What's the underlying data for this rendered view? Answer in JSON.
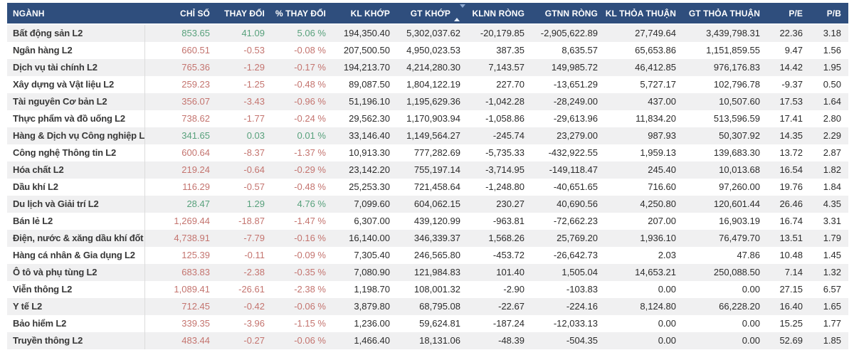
{
  "colors": {
    "header_bg": "#2f4e7d",
    "positive": "#58a17c",
    "negative": "#c4746f"
  },
  "table": {
    "columns": [
      {
        "key": "nganh",
        "label": "NGÀNH",
        "align": "left"
      },
      {
        "key": "chi_so",
        "label": "CHỈ SỐ"
      },
      {
        "key": "thay_doi",
        "label": "THAY ĐỔI"
      },
      {
        "key": "pct_thay_doi",
        "label": "% THAY ĐỔI"
      },
      {
        "key": "kl_khop",
        "label": "KL KHỚP"
      },
      {
        "key": "gt_khop",
        "label": "GT KHỚP",
        "sort_icon": true
      },
      {
        "key": "klnn_rong",
        "label": "KLNN RÒNG"
      },
      {
        "key": "gtnn_rong",
        "label": "GTNN RÒNG"
      },
      {
        "key": "kl_thoa_thuan",
        "label": "KL THỎA THUẬN"
      },
      {
        "key": "gt_thoa_thuan",
        "label": "GT THỎA THUẬN"
      },
      {
        "key": "pe",
        "label": "P/E"
      },
      {
        "key": "pb",
        "label": "P/B"
      }
    ],
    "rows": [
      {
        "nganh": "Bất động sản L2",
        "trend": "up",
        "chi_so": "853.65",
        "thay_doi": "41.09",
        "pct_thay_doi": "5.06 %",
        "kl_khop": "194,350.40",
        "gt_khop": "5,302,037.62",
        "klnn_rong": "-20,179.85",
        "gtnn_rong": "-2,905,622.89",
        "kl_thoa_thuan": "27,749.64",
        "gt_thoa_thuan": "3,439,798.31",
        "pe": "22.36",
        "pb": "3.18"
      },
      {
        "nganh": "Ngân hàng L2",
        "trend": "down",
        "chi_so": "660.51",
        "thay_doi": "-0.53",
        "pct_thay_doi": "-0.08 %",
        "kl_khop": "207,500.50",
        "gt_khop": "4,950,023.53",
        "klnn_rong": "387.35",
        "gtnn_rong": "8,635.57",
        "kl_thoa_thuan": "65,653.86",
        "gt_thoa_thuan": "1,151,859.55",
        "pe": "9.47",
        "pb": "1.56"
      },
      {
        "nganh": "Dịch vụ tài chính L2",
        "trend": "down",
        "chi_so": "765.36",
        "thay_doi": "-1.29",
        "pct_thay_doi": "-0.17 %",
        "kl_khop": "194,213.70",
        "gt_khop": "4,214,280.30",
        "klnn_rong": "7,143.57",
        "gtnn_rong": "149,985.72",
        "kl_thoa_thuan": "46,412.85",
        "gt_thoa_thuan": "976,176.83",
        "pe": "14.42",
        "pb": "1.95"
      },
      {
        "nganh": "Xây dựng và Vật liệu L2",
        "trend": "down",
        "chi_so": "259.23",
        "thay_doi": "-1.25",
        "pct_thay_doi": "-0.48 %",
        "kl_khop": "89,087.50",
        "gt_khop": "1,804,122.19",
        "klnn_rong": "227.70",
        "gtnn_rong": "-13,651.29",
        "kl_thoa_thuan": "5,727.17",
        "gt_thoa_thuan": "102,796.78",
        "pe": "-9.37",
        "pb": "0.50"
      },
      {
        "nganh": "Tài nguyên Cơ bản L2",
        "trend": "down",
        "chi_so": "356.07",
        "thay_doi": "-3.43",
        "pct_thay_doi": "-0.96 %",
        "kl_khop": "51,196.10",
        "gt_khop": "1,195,629.36",
        "klnn_rong": "-1,042.28",
        "gtnn_rong": "-28,249.00",
        "kl_thoa_thuan": "437.00",
        "gt_thoa_thuan": "10,507.60",
        "pe": "17.53",
        "pb": "1.64"
      },
      {
        "nganh": "Thực phẩm và đồ uống L2",
        "trend": "down",
        "chi_so": "738.62",
        "thay_doi": "-1.77",
        "pct_thay_doi": "-0.24 %",
        "kl_khop": "29,562.30",
        "gt_khop": "1,170,903.94",
        "klnn_rong": "-1,058.86",
        "gtnn_rong": "-29,613.96",
        "kl_thoa_thuan": "11,834.20",
        "gt_thoa_thuan": "513,596.59",
        "pe": "17.41",
        "pb": "2.80"
      },
      {
        "nganh": "Hàng & Dịch vụ Công nghiệp L2",
        "trend": "up",
        "chi_so": "341.65",
        "thay_doi": "0.03",
        "pct_thay_doi": "0.01 %",
        "kl_khop": "33,146.40",
        "gt_khop": "1,149,564.27",
        "klnn_rong": "-245.74",
        "gtnn_rong": "23,279.00",
        "kl_thoa_thuan": "987.93",
        "gt_thoa_thuan": "50,307.92",
        "pe": "14.35",
        "pb": "2.29"
      },
      {
        "nganh": "Công nghệ Thông tin L2",
        "trend": "down",
        "chi_so": "600.64",
        "thay_doi": "-8.37",
        "pct_thay_doi": "-1.37 %",
        "kl_khop": "10,913.30",
        "gt_khop": "777,282.69",
        "klnn_rong": "-5,735.33",
        "gtnn_rong": "-432,922.55",
        "kl_thoa_thuan": "1,959.13",
        "gt_thoa_thuan": "139,683.30",
        "pe": "13.72",
        "pb": "2.87"
      },
      {
        "nganh": "Hóa chất L2",
        "trend": "down",
        "chi_so": "219.24",
        "thay_doi": "-0.64",
        "pct_thay_doi": "-0.29 %",
        "kl_khop": "23,142.20",
        "gt_khop": "755,197.14",
        "klnn_rong": "-3,714.95",
        "gtnn_rong": "-149,118.47",
        "kl_thoa_thuan": "245.40",
        "gt_thoa_thuan": "10,013.68",
        "pe": "16.54",
        "pb": "1.82"
      },
      {
        "nganh": "Dầu khí L2",
        "trend": "down",
        "chi_so": "116.29",
        "thay_doi": "-0.57",
        "pct_thay_doi": "-0.48 %",
        "kl_khop": "25,253.30",
        "gt_khop": "721,458.64",
        "klnn_rong": "-1,248.80",
        "gtnn_rong": "-40,651.65",
        "kl_thoa_thuan": "716.60",
        "gt_thoa_thuan": "97,260.00",
        "pe": "19.76",
        "pb": "1.84"
      },
      {
        "nganh": "Du lịch và Giải trí L2",
        "trend": "up",
        "chi_so": "28.47",
        "thay_doi": "1.29",
        "pct_thay_doi": "4.76 %",
        "kl_khop": "7,099.60",
        "gt_khop": "604,062.15",
        "klnn_rong": "230.27",
        "gtnn_rong": "40,690.56",
        "kl_thoa_thuan": "4,250.80",
        "gt_thoa_thuan": "120,601.44",
        "pe": "26.46",
        "pb": "4.35"
      },
      {
        "nganh": "Bán lẻ L2",
        "trend": "down",
        "chi_so": "1,269.44",
        "thay_doi": "-18.87",
        "pct_thay_doi": "-1.47 %",
        "kl_khop": "6,307.00",
        "gt_khop": "439,120.99",
        "klnn_rong": "-963.81",
        "gtnn_rong": "-72,662.23",
        "kl_thoa_thuan": "207.00",
        "gt_thoa_thuan": "16,903.19",
        "pe": "16.74",
        "pb": "3.31"
      },
      {
        "nganh": "Điện, nước & xăng dầu khí đốt L2",
        "trend": "down",
        "chi_so": "4,738.91",
        "thay_doi": "-7.79",
        "pct_thay_doi": "-0.16 %",
        "kl_khop": "16,140.00",
        "gt_khop": "346,339.37",
        "klnn_rong": "1,568.26",
        "gtnn_rong": "25,769.20",
        "kl_thoa_thuan": "1,936.10",
        "gt_thoa_thuan": "76,479.70",
        "pe": "13.51",
        "pb": "1.79"
      },
      {
        "nganh": "Hàng cá nhân & Gia dụng L2",
        "trend": "down",
        "chi_so": "125.39",
        "thay_doi": "-0.11",
        "pct_thay_doi": "-0.09 %",
        "kl_khop": "7,305.40",
        "gt_khop": "246,565.80",
        "klnn_rong": "-453.72",
        "gtnn_rong": "-26,642.73",
        "kl_thoa_thuan": "2.03",
        "gt_thoa_thuan": "47.86",
        "pe": "10.48",
        "pb": "1.45"
      },
      {
        "nganh": "Ô tô và phụ tùng L2",
        "trend": "down",
        "chi_so": "683.83",
        "thay_doi": "-2.38",
        "pct_thay_doi": "-0.35 %",
        "kl_khop": "7,080.90",
        "gt_khop": "121,984.83",
        "klnn_rong": "101.40",
        "gtnn_rong": "1,505.04",
        "kl_thoa_thuan": "14,653.21",
        "gt_thoa_thuan": "250,088.50",
        "pe": "7.14",
        "pb": "1.32"
      },
      {
        "nganh": "Viễn thông L2",
        "trend": "down",
        "chi_so": "1,089.41",
        "thay_doi": "-26.61",
        "pct_thay_doi": "-2.38 %",
        "kl_khop": "1,198.70",
        "gt_khop": "108,001.32",
        "klnn_rong": "-2.90",
        "gtnn_rong": "-103.83",
        "kl_thoa_thuan": "0.00",
        "gt_thoa_thuan": "0.00",
        "pe": "27.15",
        "pb": "6.57"
      },
      {
        "nganh": "Y tế L2",
        "trend": "down",
        "chi_so": "712.45",
        "thay_doi": "-0.42",
        "pct_thay_doi": "-0.06 %",
        "kl_khop": "3,879.80",
        "gt_khop": "68,795.08",
        "klnn_rong": "-22.67",
        "gtnn_rong": "-224.16",
        "kl_thoa_thuan": "8,124.80",
        "gt_thoa_thuan": "66,228.20",
        "pe": "16.40",
        "pb": "1.65"
      },
      {
        "nganh": "Bảo hiểm L2",
        "trend": "down",
        "chi_so": "339.35",
        "thay_doi": "-3.96",
        "pct_thay_doi": "-1.15 %",
        "kl_khop": "1,236.00",
        "gt_khop": "59,624.81",
        "klnn_rong": "-187.24",
        "gtnn_rong": "-12,033.13",
        "kl_thoa_thuan": "0.00",
        "gt_thoa_thuan": "0.00",
        "pe": "15.25",
        "pb": "1.77"
      },
      {
        "nganh": "Truyền thông L2",
        "trend": "down",
        "chi_so": "483.44",
        "thay_doi": "-0.27",
        "pct_thay_doi": "-0.06 %",
        "kl_khop": "1,466.40",
        "gt_khop": "18,131.06",
        "klnn_rong": "-48.39",
        "gtnn_rong": "-504.35",
        "kl_thoa_thuan": "0.00",
        "gt_thoa_thuan": "0.00",
        "pe": "52.69",
        "pb": "1.85"
      }
    ]
  }
}
